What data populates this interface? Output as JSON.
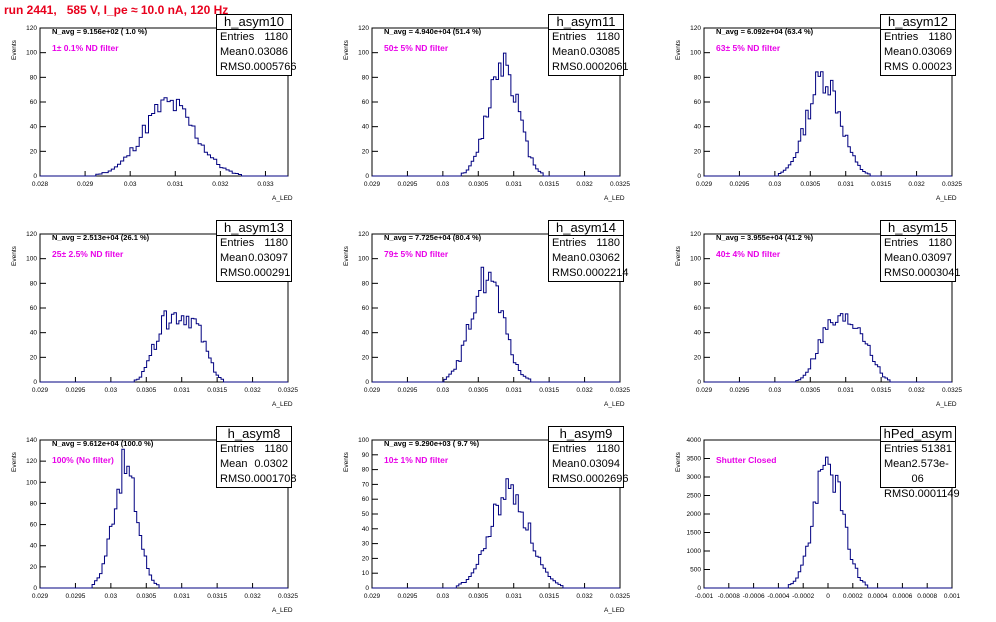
{
  "page_title": "run 2441,   585 V, I_pe ≈ 10.0 nA, 120 Hz",
  "colors": {
    "title": "#e8001c",
    "annotation": "#e800e8",
    "histogram": "#000080",
    "axis": "#000000"
  },
  "chart_data": [
    {
      "type": "bar",
      "name": "h_asym10",
      "stats": {
        "Entries": "1180",
        "Mean": "0.03086",
        "RMS": "0.0005766"
      },
      "note": "N_avg = 9.156e+02 ( 1.0 %)",
      "filter": "1± 0.1% ND filter",
      "xlabel": "A_LED",
      "ylabel": "Events",
      "xlim": [
        0.028,
        0.0335
      ],
      "ylim": [
        0,
        120
      ],
      "xticks": [
        "0.028",
        "0.029",
        "0.03",
        "0.031",
        "0.032",
        "0.033"
      ],
      "yticks": [
        "0",
        "20",
        "40",
        "60",
        "80",
        "100",
        "120"
      ],
      "mean": 0.03086,
      "rms": 0.0005766,
      "entries": 1180,
      "peak": 62,
      "bins": 80,
      "seed": 11
    },
    {
      "type": "bar",
      "name": "h_asym11",
      "stats": {
        "Entries": "1180",
        "Mean": "0.03085",
        "RMS": "0.0002061"
      },
      "note": "N_avg = 4.940e+04 (51.4 %)",
      "filter": "50± 5% ND filter",
      "xlabel": "A_LED",
      "ylabel": "Events",
      "xlim": [
        0.029,
        0.0325
      ],
      "ylim": [
        0,
        120
      ],
      "xticks": [
        "0.029",
        "0.0295",
        "0.03",
        "0.0305",
        "0.031",
        "0.0315",
        "0.032",
        "0.0325"
      ],
      "yticks": [
        "0",
        "20",
        "40",
        "60",
        "80",
        "100",
        "120"
      ],
      "mean": 0.03085,
      "rms": 0.0002061,
      "entries": 1180,
      "peak": 101,
      "bins": 100,
      "seed": 12
    },
    {
      "type": "bar",
      "name": "h_asym12",
      "stats": {
        "Entries": "1180",
        "Mean": "0.03069",
        "RMS": "0.00023"
      },
      "note": "N_avg = 6.092e+04 (63.4 %)",
      "filter": "63± 5% ND filter",
      "xlabel": "A_LED",
      "ylabel": "Events",
      "xlim": [
        0.029,
        0.0325
      ],
      "ylim": [
        0,
        120
      ],
      "xticks": [
        "0.029",
        "0.0295",
        "0.03",
        "0.0305",
        "0.031",
        "0.0315",
        "0.032",
        "0.0325"
      ],
      "yticks": [
        "0",
        "20",
        "40",
        "60",
        "80",
        "100",
        "120"
      ],
      "mean": 0.03069,
      "rms": 0.00023,
      "entries": 1180,
      "peak": 86,
      "bins": 100,
      "seed": 13
    },
    {
      "type": "bar",
      "name": "h_asym13",
      "stats": {
        "Entries": "1180",
        "Mean": "0.03097",
        "RMS": "0.000291"
      },
      "note": "N_avg = 2.513e+04 (26.1 %)",
      "filter": "25± 2.5% ND filter",
      "xlabel": "A_LED",
      "ylabel": "Events",
      "xlim": [
        0.029,
        0.0325
      ],
      "ylim": [
        0,
        120
      ],
      "xticks": [
        "0.029",
        "0.0295",
        "0.03",
        "0.0305",
        "0.031",
        "0.0315",
        "0.032",
        "0.0325"
      ],
      "yticks": [
        "0",
        "20",
        "40",
        "60",
        "80",
        "100",
        "120"
      ],
      "mean": 0.03097,
      "rms": 0.000291,
      "entries": 1180,
      "peak": 58,
      "bins": 100,
      "seed": 14,
      "flat": true
    },
    {
      "type": "bar",
      "name": "h_asym14",
      "stats": {
        "Entries": "1180",
        "Mean": "0.03062",
        "RMS": "0.0002214"
      },
      "note": "N_avg = 7.725e+04 (80.4 %)",
      "filter": "79± 5% ND filter",
      "xlabel": "A_LED",
      "ylabel": "Events",
      "xlim": [
        0.029,
        0.0325
      ],
      "ylim": [
        0,
        120
      ],
      "xticks": [
        "0.029",
        "0.0295",
        "0.03",
        "0.0305",
        "0.031",
        "0.0315",
        "0.032",
        "0.0325"
      ],
      "yticks": [
        "0",
        "20",
        "40",
        "60",
        "80",
        "100",
        "120"
      ],
      "mean": 0.03062,
      "rms": 0.0002214,
      "entries": 1180,
      "peak": 91,
      "bins": 100,
      "seed": 15
    },
    {
      "type": "bar",
      "name": "h_asym15",
      "stats": {
        "Entries": "1180",
        "Mean": "0.03097",
        "RMS": "0.0003041"
      },
      "note": "N_avg = 3.955e+04 (41.2 %)",
      "filter": "40± 4% ND filter",
      "xlabel": "A_LED",
      "ylabel": "Events",
      "xlim": [
        0.029,
        0.0325
      ],
      "ylim": [
        0,
        120
      ],
      "xticks": [
        "0.029",
        "0.0295",
        "0.03",
        "0.0305",
        "0.031",
        "0.0315",
        "0.032",
        "0.0325"
      ],
      "yticks": [
        "0",
        "20",
        "40",
        "60",
        "80",
        "100",
        "120"
      ],
      "mean": 0.03097,
      "rms": 0.0003041,
      "entries": 1180,
      "peak": 53,
      "bins": 100,
      "seed": 16,
      "flat": true
    },
    {
      "type": "bar",
      "name": "h_asym8",
      "stats": {
        "Entries": "1180",
        "Mean": "0.0302",
        "RMS": "0.0001708"
      },
      "note": "N_avg = 9.612e+04 (100.0 %)",
      "filter": "100% (No filter)",
      "xlabel": "A_LED",
      "ylabel": "Events",
      "xlim": [
        0.029,
        0.0325
      ],
      "ylim": [
        0,
        140
      ],
      "xticks": [
        "0.029",
        "0.0295",
        "0.03",
        "0.0305",
        "0.031",
        "0.0315",
        "0.032",
        "0.0325"
      ],
      "yticks": [
        "0",
        "20",
        "40",
        "60",
        "80",
        "100",
        "120",
        "140"
      ],
      "mean": 0.0302,
      "rms": 0.0001708,
      "entries": 1180,
      "peak": 121,
      "bins": 100,
      "seed": 17
    },
    {
      "type": "bar",
      "name": "h_asym9",
      "stats": {
        "Entries": "1180",
        "Mean": "0.03094",
        "RMS": "0.0002696"
      },
      "note": "N_avg = 9.290e+03 ( 9.7 %)",
      "filter": "10± 1% ND filter",
      "xlabel": "A_LED",
      "ylabel": "Events",
      "xlim": [
        0.029,
        0.0325
      ],
      "ylim": [
        0,
        100
      ],
      "xticks": [
        "0.029",
        "0.0295",
        "0.03",
        "0.0305",
        "0.031",
        "0.0315",
        "0.032",
        "0.0325"
      ],
      "yticks": [
        "0",
        "10",
        "20",
        "30",
        "40",
        "50",
        "60",
        "70",
        "80",
        "90",
        "100"
      ],
      "mean": 0.03094,
      "rms": 0.0002696,
      "entries": 1180,
      "peak": 70,
      "bins": 100,
      "seed": 18
    },
    {
      "type": "bar",
      "name": "hPed_asym",
      "stats": {
        "Entries": "51381",
        "Mean": "2.573e-06",
        "RMS": "0.0001149"
      },
      "note": "",
      "filter": "Shutter Closed",
      "xlabel": "",
      "ylabel": "Events",
      "xlim": [
        -0.001,
        0.001
      ],
      "ylim": [
        0,
        4000
      ],
      "xticks": [
        "-0.001",
        "-0.0008",
        "-0.0006",
        "-0.0004",
        "-0.0002",
        "0",
        "0.0002",
        "0.0004",
        "0.0006",
        "0.0008",
        "0.001"
      ],
      "yticks": [
        "0",
        "500",
        "1000",
        "1500",
        "2000",
        "2500",
        "3000",
        "3500",
        "4000"
      ],
      "mean": 2.6e-06,
      "rms": 0.0001149,
      "entries": 51381,
      "peak": 3530,
      "bins": 100,
      "seed": 19
    }
  ]
}
